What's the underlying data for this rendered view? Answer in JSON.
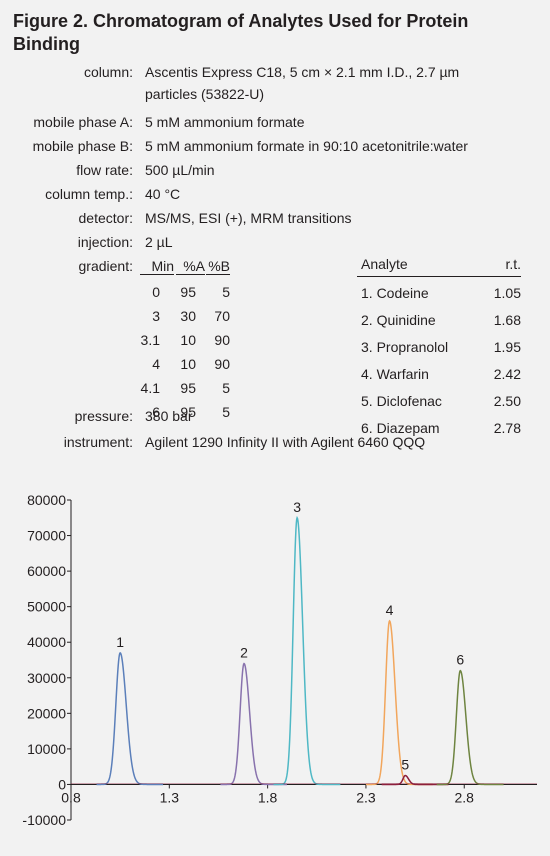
{
  "figure": {
    "title": "Figure 2. Chromatogram of Analytes Used for Protein Binding"
  },
  "conditions": [
    {
      "label": "column:",
      "value": "Ascentis Express C18, 5 cm × 2.1 mm I.D., 2.7 µm",
      "value2": "particles (53822-U)"
    },
    {
      "label": "mobile phase A:",
      "value": "5 mM ammonium formate"
    },
    {
      "label": "mobile phase B:",
      "value": "5 mM ammonium formate in 90:10 acetonitrile:water"
    },
    {
      "label": "flow rate:",
      "value": "500 µL/min"
    },
    {
      "label": "column temp.:",
      "value": "40 °C"
    },
    {
      "label": "detector:",
      "value": "MS/MS, ESI (+), MRM transitions"
    },
    {
      "label": "injection:",
      "value": "2 µL"
    }
  ],
  "gradient": {
    "label": "gradient:",
    "headers": [
      "Min",
      "%A",
      "%B"
    ],
    "rows": [
      [
        "0",
        "95",
        "5"
      ],
      [
        "3",
        "30",
        "70"
      ],
      [
        "3.1",
        "10",
        "90"
      ],
      [
        "4",
        "10",
        "90"
      ],
      [
        "4.1",
        "95",
        "5"
      ],
      [
        "6",
        "95",
        "5"
      ]
    ]
  },
  "pressure": {
    "label": "pressure:",
    "value": "380 bar"
  },
  "instrument": {
    "label": "instrument:",
    "value": "Agilent 1290 Infinity II with Agilent 6460 QQQ"
  },
  "analytes": {
    "headers": [
      "Analyte",
      "r.t."
    ],
    "rows": [
      {
        "name": "1. Codeine",
        "rt": "1.05"
      },
      {
        "name": "2. Quinidine",
        "rt": "1.68"
      },
      {
        "name": "3. Propranolol",
        "rt": "1.95"
      },
      {
        "name": "4. Warfarin",
        "rt": "2.42"
      },
      {
        "name": "5. Diclofenac",
        "rt": "2.50"
      },
      {
        "name": "6. Diazepam",
        "rt": "2.78"
      }
    ]
  },
  "chart_data": {
    "type": "line",
    "xlim": [
      0.8,
      3.17
    ],
    "ylim": [
      -10000,
      80000
    ],
    "xticks": [
      "0.8",
      "1.3",
      "1.8",
      "2.3",
      "2.8"
    ],
    "yticks": [
      "80000",
      "70000",
      "60000",
      "50000",
      "40000",
      "30000",
      "20000",
      "10000",
      "0",
      "-10000"
    ],
    "grid": false,
    "series": [
      {
        "peak": "1",
        "rt": 1.05,
        "height": 37000,
        "width": 0.022,
        "color": "#5b7fba"
      },
      {
        "peak": "2",
        "rt": 1.68,
        "height": 34000,
        "width": 0.02,
        "color": "#8872ad"
      },
      {
        "peak": "3",
        "rt": 1.95,
        "height": 75000,
        "width": 0.02,
        "color": "#4fb8c5"
      },
      {
        "peak": "4",
        "rt": 2.42,
        "height": 46000,
        "width": 0.02,
        "color": "#f2a65c"
      },
      {
        "peak": "5",
        "rt": 2.5,
        "height": 2500,
        "width": 0.012,
        "color": "#8c1f3c"
      },
      {
        "peak": "6",
        "rt": 2.78,
        "height": 32000,
        "width": 0.02,
        "color": "#6e8440"
      }
    ]
  }
}
